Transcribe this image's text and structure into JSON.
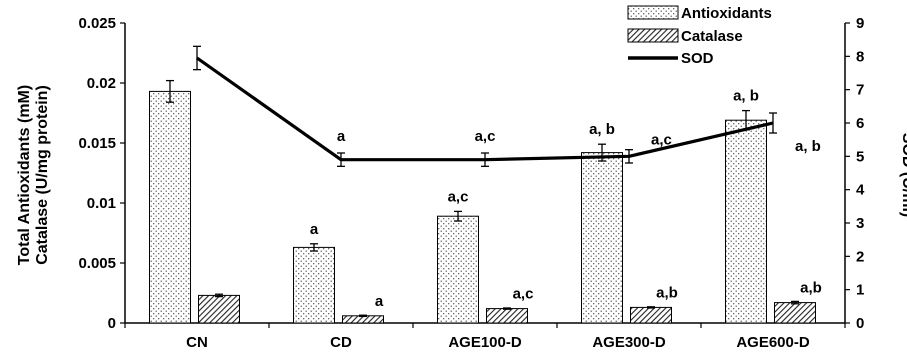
{
  "chart_data": {
    "type": "bar",
    "categories": [
      "CN",
      "CD",
      "AGE100-D",
      "AGE300-D",
      "AGE600-D"
    ],
    "ylabel_line1": "Total Antioxidants (mM)",
    "ylabel_line2": "Catalase (U/mg protein)",
    "y2label": "SOD (U/ml)",
    "ylim": [
      0,
      0.025
    ],
    "yticks": [
      "0.025",
      "0.02",
      "0.015",
      "0.01",
      "0.005",
      "0"
    ],
    "ytick_values": [
      0.025,
      0.02,
      0.015,
      0.01,
      0.005,
      0
    ],
    "y2lim": [
      0,
      9
    ],
    "y2ticks": [
      "9",
      "8",
      "7",
      "6",
      "5",
      "4",
      "3",
      "2",
      "1",
      "0"
    ],
    "y2tick_values": [
      9,
      8,
      7,
      6,
      5,
      4,
      3,
      2,
      1,
      0
    ],
    "series": [
      {
        "name": "Antioxidants",
        "kind": "bar",
        "pattern": "dots",
        "values": [
          0.0193,
          0.0063,
          0.0089,
          0.0142,
          0.0169
        ],
        "errors": [
          0.0009,
          0.0003,
          0.0004,
          0.0007,
          0.0008
        ],
        "labels": [
          "",
          "a",
          "a,c",
          "a, b",
          "a, b"
        ]
      },
      {
        "name": "Catalase",
        "kind": "bar",
        "pattern": "hatch",
        "values": [
          0.0023,
          0.0006,
          0.0012,
          0.0013,
          0.0017
        ],
        "errors": [
          0.0001,
          5e-05,
          5e-05,
          5e-05,
          0.0001
        ],
        "labels": [
          "",
          "a",
          "a,c",
          "a,b",
          "a,b"
        ]
      },
      {
        "name": "SOD",
        "kind": "line",
        "axis": "right",
        "values": [
          7.95,
          4.9,
          4.9,
          5.0,
          6.0
        ],
        "errors": [
          0.35,
          0.2,
          0.2,
          0.2,
          0.3
        ],
        "labels": [
          "",
          "a",
          "a,c",
          "a,c",
          "a, b"
        ]
      }
    ],
    "legend": {
      "position": "top-right",
      "items": [
        "Antioxidants",
        "Catalase",
        "SOD"
      ]
    },
    "grid": false,
    "colors": {
      "bar_fill": "#ffffff",
      "bar_stroke": "#000000",
      "line": "#000000"
    }
  }
}
